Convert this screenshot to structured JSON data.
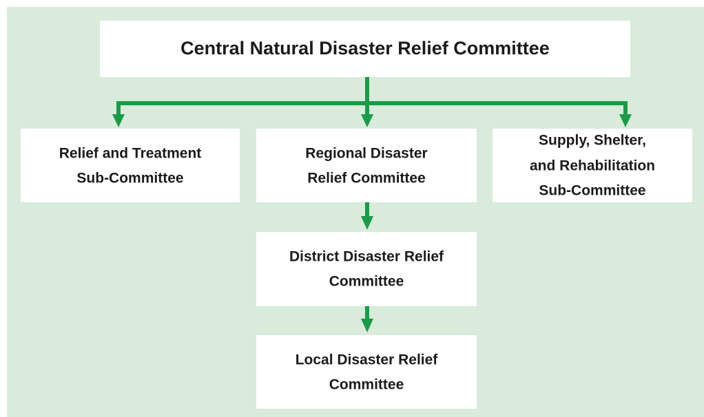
{
  "nodes": [
    {
      "lines": [
        "Central Natural Disaster Relief Committee"
      ]
    },
    {
      "lines": [
        "Relief and Treatment",
        "Sub-Committee"
      ]
    },
    {
      "lines": [
        "Regional Disaster",
        "Relief Committee"
      ]
    },
    {
      "lines": [
        "Supply, Shelter,",
        "and Rehabilitation",
        "Sub-Committee"
      ]
    },
    {
      "lines": [
        "District Disaster Relief",
        "Committee"
      ]
    },
    {
      "lines": [
        "Local Disaster Relief",
        "Committee"
      ]
    }
  ]
}
